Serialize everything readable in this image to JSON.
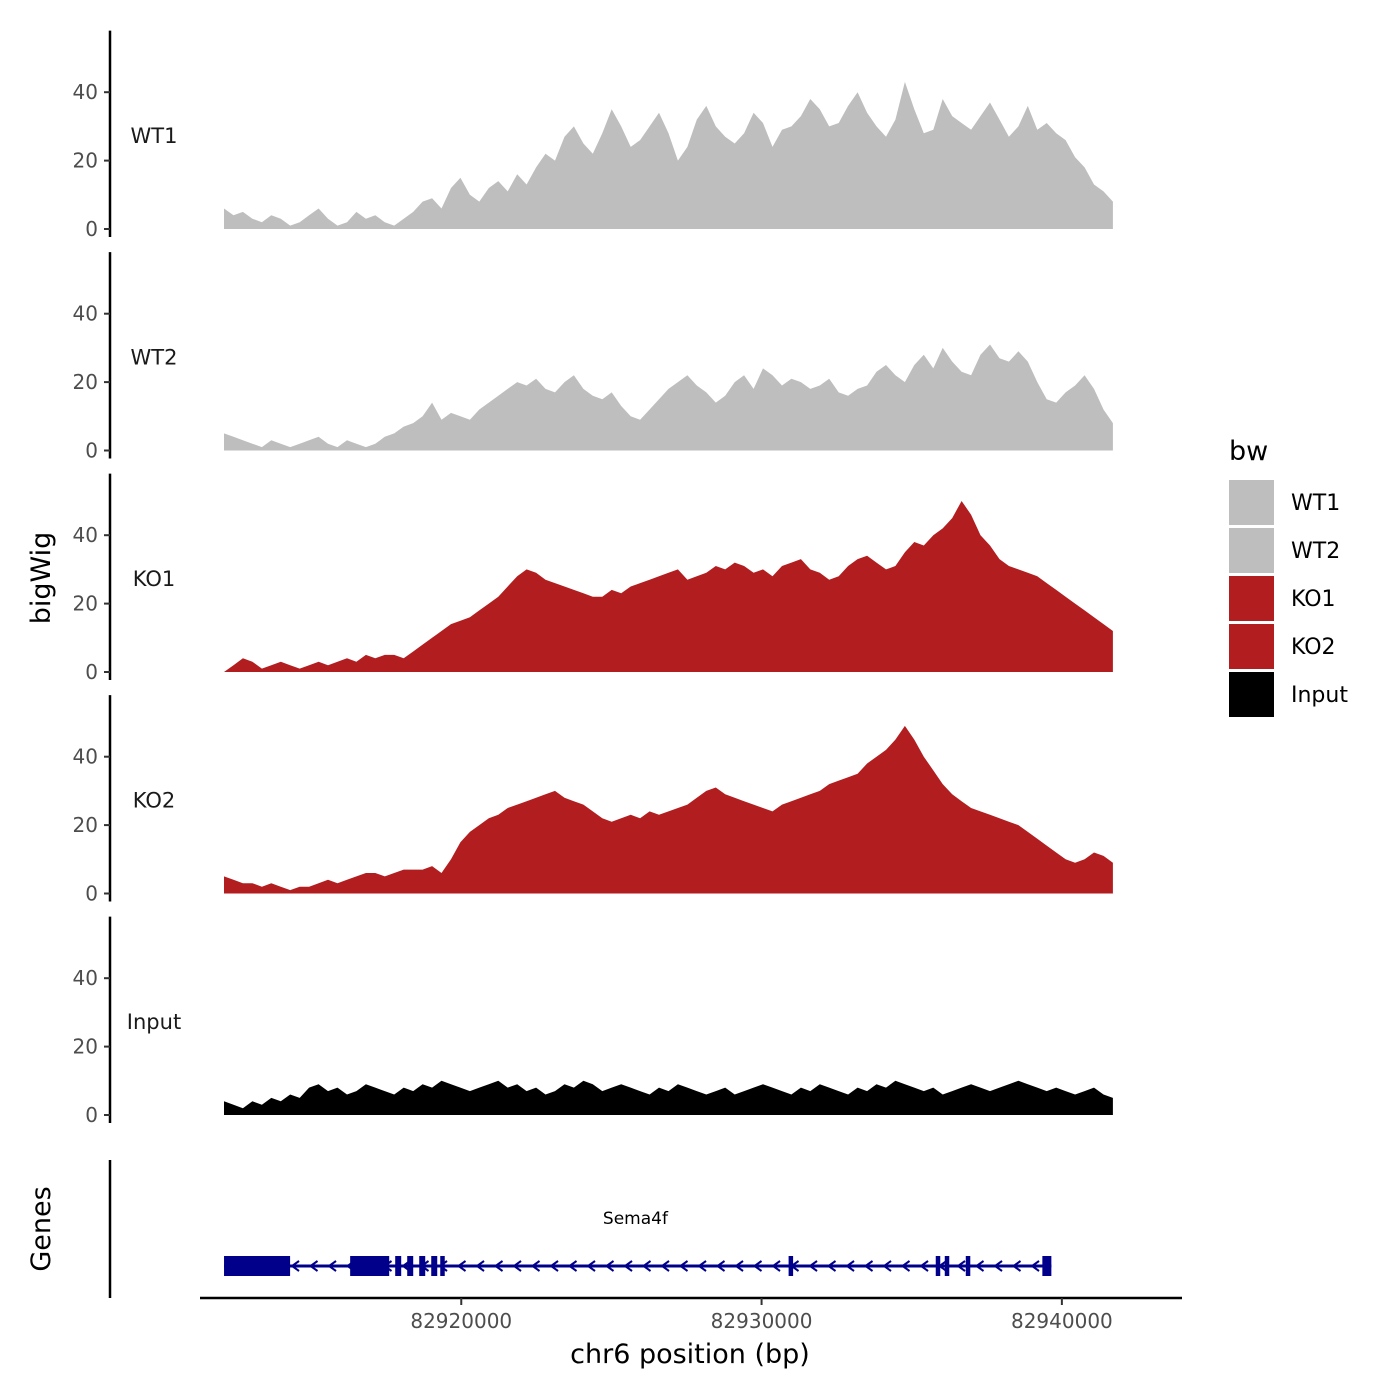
{
  "chart_data": {
    "type": "area",
    "chromosome": "chr6",
    "xlabel": "chr6 position (bp)",
    "ylabel": "bigWig",
    "genes_label": "Genes",
    "xlim": [
      82911300,
      82944000
    ],
    "data_x_range": [
      82912100,
      82941700
    ],
    "x_ticks": [
      82920000,
      82930000,
      82940000
    ],
    "x_tick_labels": [
      "82920000",
      "82930000",
      "82940000"
    ],
    "ylim": [
      0,
      58
    ],
    "y_ticks": [
      0,
      20,
      40
    ],
    "y_tick_labels": [
      "0",
      "20",
      "40"
    ],
    "legend": {
      "title": "bw",
      "position": "right",
      "items": [
        {
          "label": "WT1",
          "color": "#bebebe"
        },
        {
          "label": "WT2",
          "color": "#bebebe"
        },
        {
          "label": "KO1",
          "color": "#b21d1f"
        },
        {
          "label": "KO2",
          "color": "#b21d1f"
        },
        {
          "label": "Input",
          "color": "#000000"
        }
      ]
    },
    "series": [
      {
        "name": "WT1",
        "color": "#bebebe",
        "values": [
          6,
          4,
          5,
          3,
          2,
          4,
          3,
          1,
          2,
          4,
          6,
          3,
          1,
          2,
          5,
          3,
          4,
          2,
          1,
          3,
          5,
          8,
          9,
          6,
          12,
          15,
          10,
          8,
          12,
          14,
          11,
          16,
          13,
          18,
          22,
          20,
          27,
          30,
          25,
          22,
          28,
          35,
          30,
          24,
          26,
          30,
          34,
          28,
          20,
          24,
          32,
          36,
          30,
          27,
          25,
          28,
          34,
          31,
          24,
          29,
          30,
          33,
          38,
          35,
          30,
          31,
          36,
          40,
          34,
          30,
          27,
          32,
          43,
          35,
          28,
          29,
          38,
          33,
          31,
          29,
          33,
          37,
          32,
          27,
          30,
          36,
          29,
          31,
          28,
          26,
          21,
          18,
          13,
          11,
          8
        ]
      },
      {
        "name": "WT2",
        "color": "#bebebe",
        "values": [
          5,
          4,
          3,
          2,
          1,
          3,
          2,
          1,
          2,
          3,
          4,
          2,
          1,
          3,
          2,
          1,
          2,
          4,
          5,
          7,
          8,
          10,
          14,
          9,
          11,
          10,
          9,
          12,
          14,
          16,
          18,
          20,
          19,
          21,
          18,
          17,
          20,
          22,
          18,
          16,
          15,
          17,
          13,
          10,
          9,
          12,
          15,
          18,
          20,
          22,
          19,
          17,
          14,
          16,
          20,
          22,
          18,
          24,
          22,
          19,
          21,
          20,
          18,
          19,
          21,
          17,
          16,
          18,
          19,
          23,
          25,
          22,
          20,
          25,
          28,
          24,
          30,
          26,
          23,
          22,
          28,
          31,
          27,
          26,
          29,
          26,
          20,
          15,
          14,
          17,
          19,
          22,
          18,
          12,
          8
        ]
      },
      {
        "name": "KO1",
        "color": "#b21d1f",
        "values": [
          0,
          2,
          4,
          3,
          1,
          2,
          3,
          2,
          1,
          2,
          3,
          2,
          3,
          4,
          3,
          5,
          4,
          5,
          5,
          4,
          6,
          8,
          10,
          12,
          14,
          15,
          16,
          18,
          20,
          22,
          25,
          28,
          30,
          29,
          27,
          26,
          25,
          24,
          23,
          22,
          22,
          24,
          23,
          25,
          26,
          27,
          28,
          29,
          30,
          27,
          28,
          29,
          31,
          30,
          32,
          31,
          29,
          30,
          28,
          31,
          32,
          33,
          30,
          29,
          27,
          28,
          31,
          33,
          34,
          32,
          30,
          31,
          35,
          38,
          37,
          40,
          42,
          45,
          50,
          46,
          40,
          37,
          33,
          31,
          30,
          29,
          28,
          26,
          24,
          22,
          20,
          18,
          16,
          14,
          12
        ]
      },
      {
        "name": "KO2",
        "color": "#b21d1f",
        "values": [
          5,
          4,
          3,
          3,
          2,
          3,
          2,
          1,
          2,
          2,
          3,
          4,
          3,
          4,
          5,
          6,
          6,
          5,
          6,
          7,
          7,
          7,
          8,
          6,
          10,
          15,
          18,
          20,
          22,
          23,
          25,
          26,
          27,
          28,
          29,
          30,
          28,
          27,
          26,
          24,
          22,
          21,
          22,
          23,
          22,
          24,
          23,
          24,
          25,
          26,
          28,
          30,
          31,
          29,
          28,
          27,
          26,
          25,
          24,
          26,
          27,
          28,
          29,
          30,
          32,
          33,
          34,
          35,
          38,
          40,
          42,
          45,
          49,
          45,
          40,
          36,
          32,
          29,
          27,
          25,
          24,
          23,
          22,
          21,
          20,
          18,
          16,
          14,
          12,
          10,
          9,
          10,
          12,
          11,
          9
        ]
      },
      {
        "name": "Input",
        "color": "#000000",
        "values": [
          4,
          3,
          2,
          4,
          3,
          5,
          4,
          6,
          5,
          8,
          9,
          7,
          8,
          6,
          7,
          9,
          8,
          7,
          6,
          8,
          7,
          9,
          8,
          10,
          9,
          8,
          7,
          8,
          9,
          10,
          8,
          9,
          7,
          8,
          6,
          7,
          9,
          8,
          10,
          9,
          7,
          8,
          9,
          8,
          7,
          6,
          8,
          7,
          9,
          8,
          7,
          6,
          7,
          8,
          6,
          7,
          8,
          9,
          8,
          7,
          6,
          8,
          7,
          9,
          8,
          7,
          6,
          8,
          7,
          9,
          8,
          10,
          9,
          8,
          7,
          8,
          6,
          7,
          8,
          9,
          8,
          7,
          8,
          9,
          10,
          9,
          8,
          7,
          8,
          7,
          6,
          7,
          8,
          6,
          5
        ]
      }
    ],
    "gene_track": {
      "name": "Sema4f",
      "strand": "-",
      "color": "#00008b",
      "start": 82912100,
      "end": 82939650,
      "exons": [
        [
          82912100,
          82914300
        ],
        [
          82916300,
          82917600
        ],
        [
          82917800,
          82918000
        ],
        [
          82918200,
          82918400
        ],
        [
          82918600,
          82918800
        ],
        [
          82919000,
          82919200
        ],
        [
          82919300,
          82919450
        ],
        [
          82930900,
          82931050
        ],
        [
          82935800,
          82935950
        ],
        [
          82936100,
          82936250
        ],
        [
          82936800,
          82936950
        ],
        [
          82939350,
          82939650
        ]
      ]
    }
  }
}
